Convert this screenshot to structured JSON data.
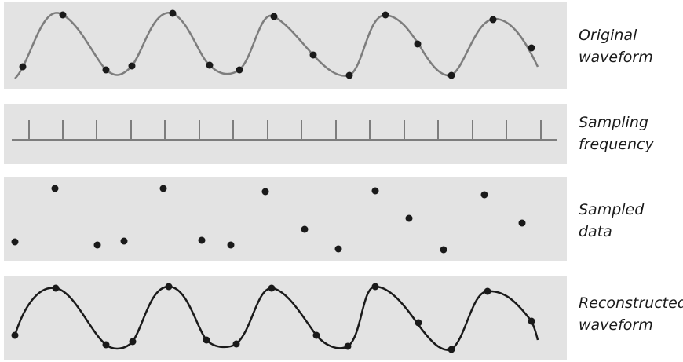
{
  "labels": {
    "original": [
      "Original",
      "waveform"
    ],
    "sampling": [
      "Sampling",
      "frequency"
    ],
    "sampled": [
      "Sampled",
      "data"
    ],
    "reconstructed": [
      "Reconstructed",
      "waveform"
    ]
  },
  "colors": {
    "panel": "#e3e3e3",
    "original_wave": "#7d7d7d",
    "sampling_ticks": "#7d7d7d",
    "dots": "#1a1a1a",
    "reconstructed_wave": "#1a1a1a"
  }
}
